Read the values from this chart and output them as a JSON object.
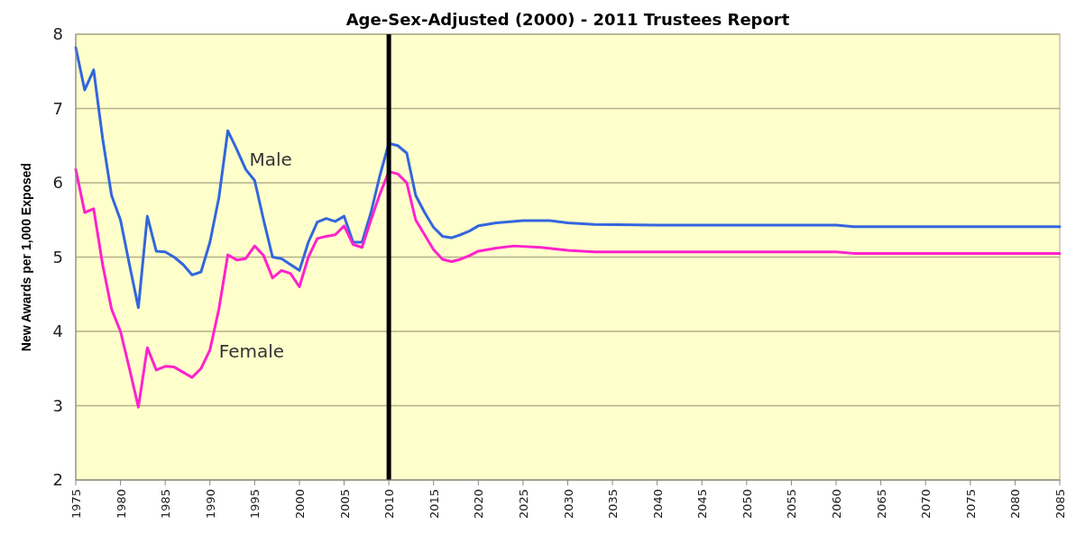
{
  "chart_data": {
    "type": "line",
    "title": "Age-Sex-Adjusted (2000) - 2011 Trustees Report",
    "ylabel": "New Awards per 1,000 Exposed",
    "xlim": [
      1975,
      2085
    ],
    "xticks": [
      1975,
      1980,
      1985,
      1990,
      1995,
      2000,
      2005,
      2010,
      2015,
      2020,
      2025,
      2030,
      2035,
      2040,
      2045,
      2050,
      2055,
      2060,
      2065,
      2070,
      2075,
      2080,
      2085
    ],
    "ylim": [
      2,
      8
    ],
    "yticks": [
      2,
      3,
      4,
      5,
      6,
      7,
      8
    ],
    "grid": "y",
    "legend": false,
    "ref_lines": [
      {
        "axis": "x",
        "value": 2010,
        "color": "#000000"
      }
    ],
    "series": [
      {
        "name": "Male",
        "color": "#3366dd",
        "x": [
          1975,
          1976,
          1977,
          1978,
          1979,
          1980,
          1981,
          1982,
          1983,
          1984,
          1985,
          1986,
          1987,
          1988,
          1989,
          1990,
          1991,
          1992,
          1993,
          1994,
          1995,
          1996,
          1997,
          1998,
          1999,
          2000,
          2001,
          2002,
          2003,
          2004,
          2005,
          2006,
          2007,
          2008,
          2009,
          2010,
          2011,
          2012,
          2013,
          2014,
          2015,
          2016,
          2017,
          2018,
          2019,
          2020,
          2022,
          2025,
          2028,
          2030,
          2033,
          2040,
          2060,
          2062,
          2085
        ],
        "values": [
          7.82,
          7.25,
          7.52,
          6.6,
          5.83,
          5.5,
          4.9,
          4.32,
          5.55,
          5.08,
          5.07,
          5.0,
          4.9,
          4.76,
          4.8,
          5.2,
          5.8,
          6.7,
          6.45,
          6.18,
          6.03,
          5.5,
          5.0,
          4.98,
          4.9,
          4.82,
          5.2,
          5.47,
          5.52,
          5.48,
          5.55,
          5.2,
          5.2,
          5.6,
          6.1,
          6.53,
          6.5,
          6.4,
          5.83,
          5.6,
          5.4,
          5.28,
          5.26,
          5.3,
          5.35,
          5.42,
          5.46,
          5.49,
          5.49,
          5.46,
          5.44,
          5.43,
          5.43,
          5.41,
          5.41
        ]
      },
      {
        "name": "Female",
        "color": "#ff22cc",
        "x": [
          1975,
          1976,
          1977,
          1978,
          1979,
          1980,
          1981,
          1982,
          1983,
          1984,
          1985,
          1986,
          1987,
          1988,
          1989,
          1990,
          1991,
          1992,
          1993,
          1994,
          1995,
          1996,
          1997,
          1998,
          1999,
          2000,
          2001,
          2002,
          2003,
          2004,
          2005,
          2006,
          2007,
          2008,
          2009,
          2010,
          2011,
          2012,
          2013,
          2014,
          2015,
          2016,
          2017,
          2018,
          2019,
          2020,
          2022,
          2024,
          2027,
          2030,
          2033,
          2060,
          2062,
          2085
        ],
        "values": [
          6.18,
          5.6,
          5.65,
          4.9,
          4.3,
          4.0,
          3.5,
          2.98,
          3.78,
          3.48,
          3.53,
          3.52,
          3.45,
          3.38,
          3.5,
          3.75,
          4.3,
          5.03,
          4.96,
          4.98,
          5.15,
          5.02,
          4.72,
          4.82,
          4.78,
          4.6,
          5.0,
          5.25,
          5.28,
          5.3,
          5.42,
          5.17,
          5.13,
          5.5,
          5.85,
          6.15,
          6.12,
          6.0,
          5.5,
          5.3,
          5.1,
          4.97,
          4.94,
          4.97,
          5.02,
          5.08,
          5.12,
          5.15,
          5.13,
          5.09,
          5.07,
          5.07,
          5.05,
          5.05
        ]
      }
    ]
  }
}
